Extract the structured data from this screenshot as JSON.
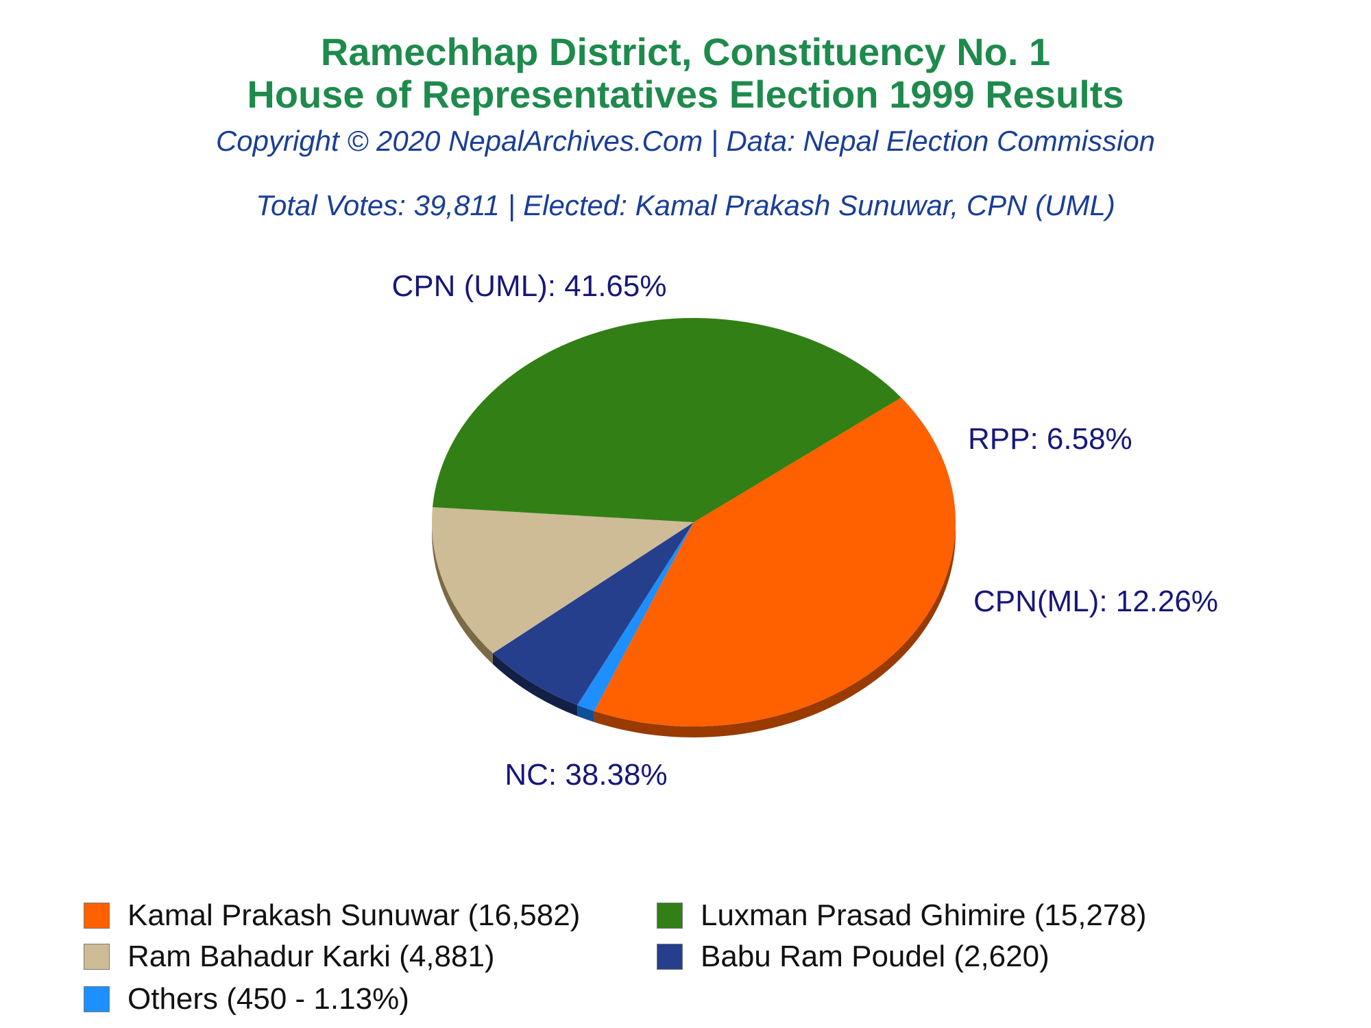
{
  "title_line1": "Ramechhap District, Constituency No. 1",
  "title_line2": "House of Representatives Election 1999 Results",
  "copyright": "Copyright © 2020 NepalArchives.Com | Data: Nepal Election Commission",
  "summary": "Total Votes: 39,811 | Elected: Kamal Prakash Sunuwar, CPN (UML)",
  "colors": {
    "title": "#1e8a4c",
    "subtitle": "#1a3e96",
    "slice_label": "#17177a"
  },
  "chart_data": {
    "type": "pie",
    "total_votes": 39811,
    "slices": [
      {
        "label": "CPN (UML): 41.65%",
        "party": "CPN (UML)",
        "percent": 41.65,
        "votes": 16582,
        "color": "#ff6000",
        "side_color": "#993a00"
      },
      {
        "label": "",
        "party": "Others",
        "percent": 1.13,
        "votes": 450,
        "color": "#1e8fff",
        "side_color": "#0e4f99"
      },
      {
        "label": "RPP: 6.58%",
        "party": "RPP",
        "percent": 6.58,
        "votes": 2620,
        "color": "#263f8c",
        "side_color": "#132046"
      },
      {
        "label": "CPN(ML): 12.26%",
        "party": "CPN(ML)",
        "percent": 12.26,
        "votes": 4881,
        "color": "#cdbc96",
        "side_color": "#7b6a47"
      },
      {
        "label": "NC: 38.38%",
        "party": "NC",
        "percent": 38.38,
        "votes": 15278,
        "color": "#327f16",
        "side_color": "#0e2a05"
      }
    ],
    "legend": [
      {
        "text": "Kamal Prakash Sunuwar (16,582)",
        "color": "#ff6000"
      },
      {
        "text": "Luxman Prasad Ghimire (15,278)",
        "color": "#327f16"
      },
      {
        "text": "Ram Bahadur Karki (4,881)",
        "color": "#cdbc96"
      },
      {
        "text": "Babu Ram Poudel (2,620)",
        "color": "#263f8c"
      },
      {
        "text": "Others (450 - 1.13%)",
        "color": "#1e8fff"
      }
    ]
  }
}
